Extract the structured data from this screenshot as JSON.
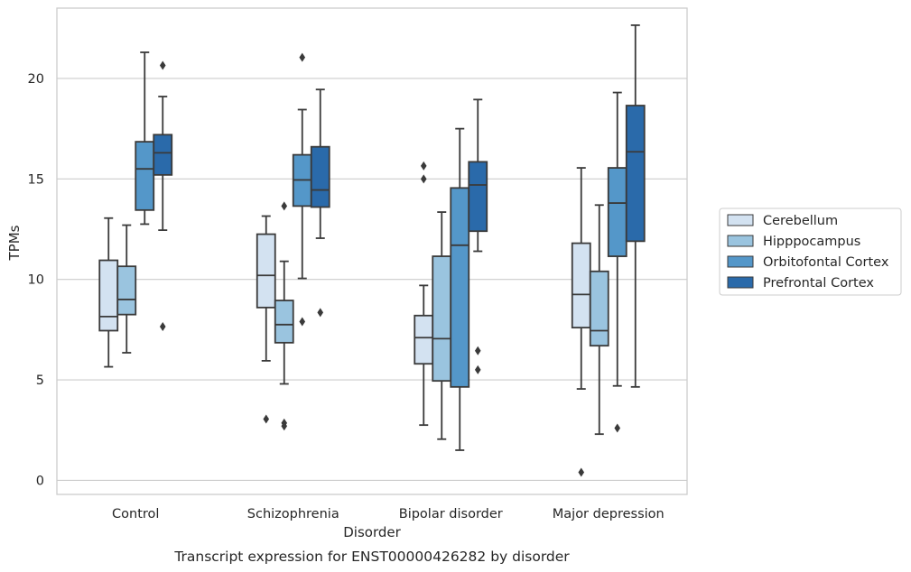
{
  "caption": "Transcript expression for ENST00000426282 by disorder",
  "chart_data": {
    "type": "box",
    "xlabel": "Disorder",
    "ylabel": "TPMs",
    "ylim": [
      -0.7,
      23.5
    ],
    "yticks": [
      0,
      5,
      10,
      15,
      20
    ],
    "grid": "horizontal",
    "legend_position": "right",
    "categories": [
      "Control",
      "Schizophrenia",
      "Bipolar disorder",
      "Major depression"
    ],
    "series": [
      {
        "name": "Cerebellum",
        "color": "#d3e2f1",
        "boxes": [
          {
            "whisker_low": 5.65,
            "q1": 7.45,
            "median": 8.15,
            "q3": 10.95,
            "whisker_high": 13.05,
            "outliers": []
          },
          {
            "whisker_low": 5.95,
            "q1": 8.6,
            "median": 10.2,
            "q3": 12.25,
            "whisker_high": 13.15,
            "outliers": [
              3.05
            ]
          },
          {
            "whisker_low": 2.75,
            "q1": 5.8,
            "median": 7.1,
            "q3": 8.2,
            "whisker_high": 9.7,
            "outliers": [
              15.65,
              15.0
            ]
          },
          {
            "whisker_low": 4.55,
            "q1": 7.6,
            "median": 9.25,
            "q3": 11.8,
            "whisker_high": 15.55,
            "outliers": [
              0.4
            ]
          }
        ]
      },
      {
        "name": "Hipppocampus",
        "color": "#9ac4df",
        "boxes": [
          {
            "whisker_low": 6.35,
            "q1": 8.25,
            "median": 9.0,
            "q3": 10.65,
            "whisker_high": 12.7,
            "outliers": []
          },
          {
            "whisker_low": 4.8,
            "q1": 6.85,
            "median": 7.75,
            "q3": 8.95,
            "whisker_high": 10.9,
            "outliers": [
              13.65,
              2.85,
              2.7
            ]
          },
          {
            "whisker_low": 2.05,
            "q1": 4.95,
            "median": 7.05,
            "q3": 11.15,
            "whisker_high": 13.35,
            "outliers": []
          },
          {
            "whisker_low": 2.3,
            "q1": 6.7,
            "median": 7.45,
            "q3": 10.4,
            "whisker_high": 13.7,
            "outliers": []
          }
        ]
      },
      {
        "name": "Orbitofontal Cortex",
        "color": "#5497c9",
        "boxes": [
          {
            "whisker_low": 12.75,
            "q1": 13.45,
            "median": 15.5,
            "q3": 16.85,
            "whisker_high": 21.3,
            "outliers": []
          },
          {
            "whisker_low": 10.05,
            "q1": 13.65,
            "median": 14.95,
            "q3": 16.2,
            "whisker_high": 18.45,
            "outliers": [
              21.05,
              7.9
            ]
          },
          {
            "whisker_low": 1.5,
            "q1": 4.65,
            "median": 11.7,
            "q3": 14.55,
            "whisker_high": 17.5,
            "outliers": []
          },
          {
            "whisker_low": 4.7,
            "q1": 11.15,
            "median": 13.8,
            "q3": 15.55,
            "whisker_high": 19.3,
            "outliers": [
              2.6
            ]
          }
        ]
      },
      {
        "name": "Prefrontal Cortex",
        "color": "#2a6aaa",
        "boxes": [
          {
            "whisker_low": 12.45,
            "q1": 15.2,
            "median": 16.3,
            "q3": 17.2,
            "whisker_high": 19.1,
            "outliers": [
              20.65,
              7.65
            ]
          },
          {
            "whisker_low": 12.05,
            "q1": 13.6,
            "median": 14.45,
            "q3": 16.6,
            "whisker_high": 19.45,
            "outliers": [
              8.35
            ]
          },
          {
            "whisker_low": 11.4,
            "q1": 12.4,
            "median": 14.7,
            "q3": 15.85,
            "whisker_high": 18.95,
            "outliers": [
              6.45,
              5.5
            ]
          },
          {
            "whisker_low": 4.65,
            "q1": 11.9,
            "median": 16.35,
            "q3": 18.65,
            "whisker_high": 22.65,
            "outliers": []
          }
        ]
      }
    ]
  }
}
